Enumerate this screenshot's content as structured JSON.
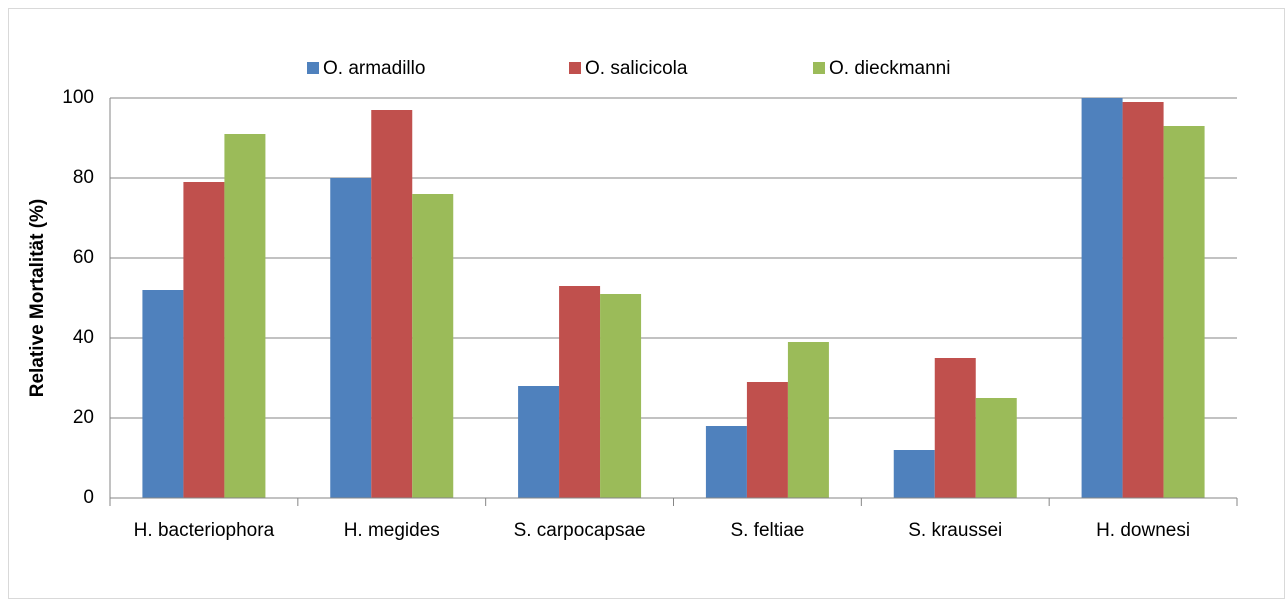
{
  "chart_data": {
    "type": "bar",
    "y_label": "Relative Mortalität (%)",
    "categories": [
      "H. bacteriophora",
      "H. megides",
      "S. carpocapsae",
      "S. feltiae",
      "S. kraussei",
      "H. downesi"
    ],
    "series": [
      {
        "name": "O. armadillo",
        "color": "#4f81bd",
        "values": [
          52,
          80,
          28,
          18,
          12,
          100
        ]
      },
      {
        "name": "O. salicicola",
        "color": "#c0504d",
        "values": [
          79,
          97,
          53,
          29,
          35,
          99
        ]
      },
      {
        "name": "O. dieckmanni",
        "color": "#9bbb59",
        "values": [
          91,
          76,
          51,
          39,
          25,
          93
        ]
      }
    ],
    "ylim": [
      0,
      100
    ],
    "yticks": [
      0,
      20,
      40,
      60,
      80,
      100
    ],
    "grid": true,
    "legend": "top"
  }
}
